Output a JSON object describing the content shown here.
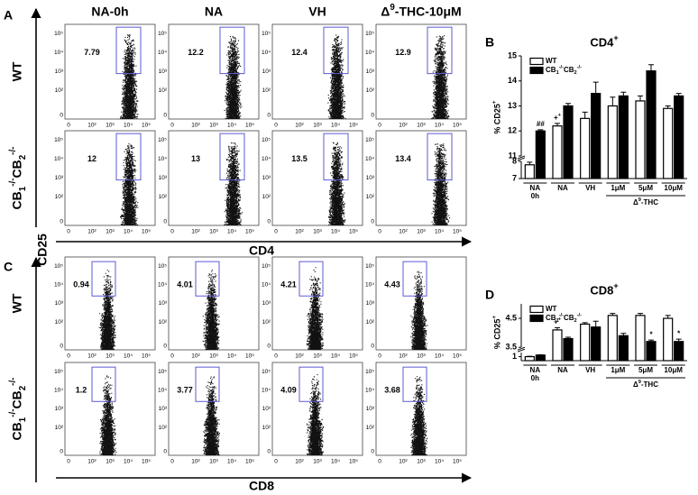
{
  "panels": {
    "a": "A",
    "b": "B",
    "c": "C",
    "d": "D"
  },
  "flow": {
    "columns": [
      "NA-0h",
      "NA",
      "VH",
      "Δ9-THC-10μM"
    ],
    "rows": [
      "WT",
      "CB1-/-CB2-/-"
    ],
    "y_axis_label": "CD25",
    "ticks": [
      "0",
      "10²",
      "10³",
      "10⁴",
      "10⁵"
    ],
    "cd4": {
      "x_axis_label": "CD4",
      "gates": [
        [
          7.79,
          12.2,
          12.4,
          12.9
        ],
        [
          12,
          13,
          13.5,
          13.4
        ]
      ]
    },
    "cd8": {
      "x_axis_label": "CD8",
      "gates": [
        [
          0.94,
          4.01,
          4.21,
          4.43
        ],
        [
          1.2,
          3.77,
          4.09,
          3.68
        ]
      ]
    }
  },
  "chart_data": [
    {
      "type": "bar",
      "title": "CD4+",
      "y_label": "% CD25+",
      "categories": [
        "NA",
        "NA",
        "VH",
        "1μM",
        "5μM",
        "10μM"
      ],
      "category_sublabels": [
        "0h",
        null,
        null,
        null,
        null,
        null
      ],
      "group_label": "Δ9-THC",
      "ylim": [
        7,
        15
      ],
      "y_break": [
        8,
        11
      ],
      "yticks": [
        7,
        8,
        11,
        12,
        13,
        14,
        15
      ],
      "legend": "upper left",
      "series": [
        {
          "name": "WT",
          "color": "#ffffff",
          "values": [
            7.8,
            12.2,
            12.5,
            13.0,
            13.2,
            12.9
          ],
          "errors": [
            0.15,
            0.1,
            0.25,
            0.35,
            0.2,
            0.1
          ],
          "annotations": [
            null,
            "++",
            null,
            null,
            null,
            null
          ]
        },
        {
          "name": "CB1-/-CB2-/-",
          "color": "#000000",
          "values": [
            12.0,
            13.0,
            13.5,
            13.4,
            14.4,
            13.4
          ],
          "errors": [
            0.05,
            0.1,
            0.45,
            0.15,
            0.25,
            0.1
          ],
          "annotations": [
            "##",
            null,
            null,
            null,
            null,
            null
          ]
        }
      ]
    },
    {
      "type": "bar",
      "title": "CD8+",
      "y_label": "% CD25+",
      "categories": [
        "NA",
        "NA",
        "VH",
        "1μM",
        "5μM",
        "10μM"
      ],
      "category_sublabels": [
        "0h",
        null,
        null,
        null,
        null,
        null
      ],
      "group_label": "Δ9-THC",
      "ylim": [
        0.5,
        5
      ],
      "y_break": [
        1.5,
        3.5
      ],
      "yticks": [
        1,
        3.5,
        4.5
      ],
      "legend": "upper left",
      "series": [
        {
          "name": "WT",
          "color": "#ffffff",
          "values": [
            1.0,
            4.1,
            4.3,
            4.6,
            4.6,
            4.5
          ],
          "errors": [
            0.05,
            0.08,
            0.05,
            0.07,
            0.07,
            0.1
          ],
          "annotations": [
            null,
            "++",
            null,
            null,
            null,
            null
          ]
        },
        {
          "name": "CB1-/-CB2-/-",
          "color": "#000000",
          "values": [
            1.2,
            3.8,
            4.2,
            3.9,
            3.7,
            3.7
          ],
          "errors": [
            0.03,
            0.05,
            0.2,
            0.08,
            0.05,
            0.08
          ],
          "annotations": [
            null,
            null,
            null,
            null,
            "*",
            "*"
          ]
        }
      ]
    }
  ]
}
